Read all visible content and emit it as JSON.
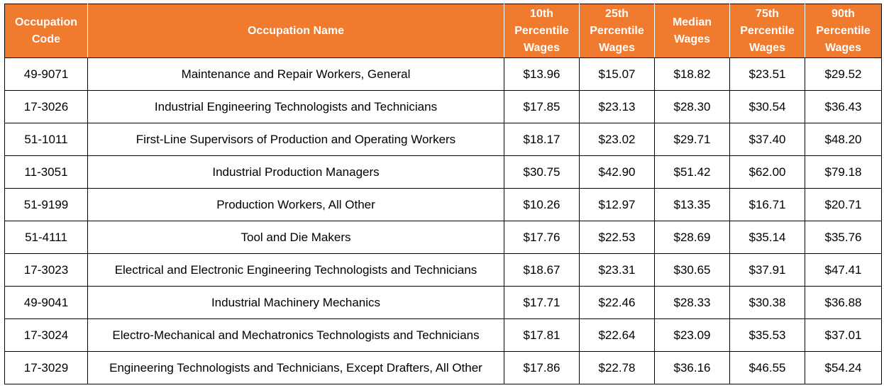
{
  "table": {
    "headers": [
      [
        "Occupation",
        "Code"
      ],
      [
        "Occupation Name"
      ],
      [
        "10th",
        "Percentile",
        "Wages"
      ],
      [
        "25th",
        "Percentile",
        "Wages"
      ],
      [
        "Median",
        "Wages"
      ],
      [
        "75th",
        "Percentile",
        "Wages"
      ],
      [
        "90th",
        "Percentile",
        "Wages"
      ]
    ],
    "rows": [
      [
        "49-9071",
        "Maintenance and Repair Workers, General",
        "$13.96",
        "$15.07",
        "$18.82",
        "$23.51",
        "$29.52"
      ],
      [
        "17-3026",
        "Industrial Engineering Technologists and Technicians",
        "$17.85",
        "$23.13",
        "$28.30",
        "$30.54",
        "$36.43"
      ],
      [
        "51-1011",
        "First-Line Supervisors of Production and Operating Workers",
        "$18.17",
        "$23.02",
        "$29.71",
        "$37.40",
        "$48.20"
      ],
      [
        "11-3051",
        "Industrial Production Managers",
        "$30.75",
        "$42.90",
        "$51.42",
        "$62.00",
        "$79.18"
      ],
      [
        "51-9199",
        "Production Workers, All Other",
        "$10.26",
        "$12.97",
        "$13.35",
        "$16.71",
        "$20.71"
      ],
      [
        "51-4111",
        "Tool and Die Makers",
        "$17.76",
        "$22.53",
        "$28.69",
        "$35.14",
        "$35.76"
      ],
      [
        "17-3023",
        "Electrical and Electronic Engineering Technologists and Technicians",
        "$18.67",
        "$23.31",
        "$30.65",
        "$37.91",
        "$47.41"
      ],
      [
        "49-9041",
        "Industrial Machinery Mechanics",
        "$17.71",
        "$22.46",
        "$28.33",
        "$30.38",
        "$36.88"
      ],
      [
        "17-3024",
        "Electro-Mechanical and Mechatronics Technologists and Technicians",
        "$17.81",
        "$22.64",
        "$23.09",
        "$35.53",
        "$37.01"
      ],
      [
        "17-3029",
        "Engineering Technologists and Technicians, Except Drafters, All Other",
        "$17.86",
        "$22.78",
        "$36.16",
        "$46.55",
        "$54.24"
      ]
    ]
  },
  "colors": {
    "header_bg": "#f07a2e",
    "header_text": "#ffffff",
    "border": "#000000"
  }
}
